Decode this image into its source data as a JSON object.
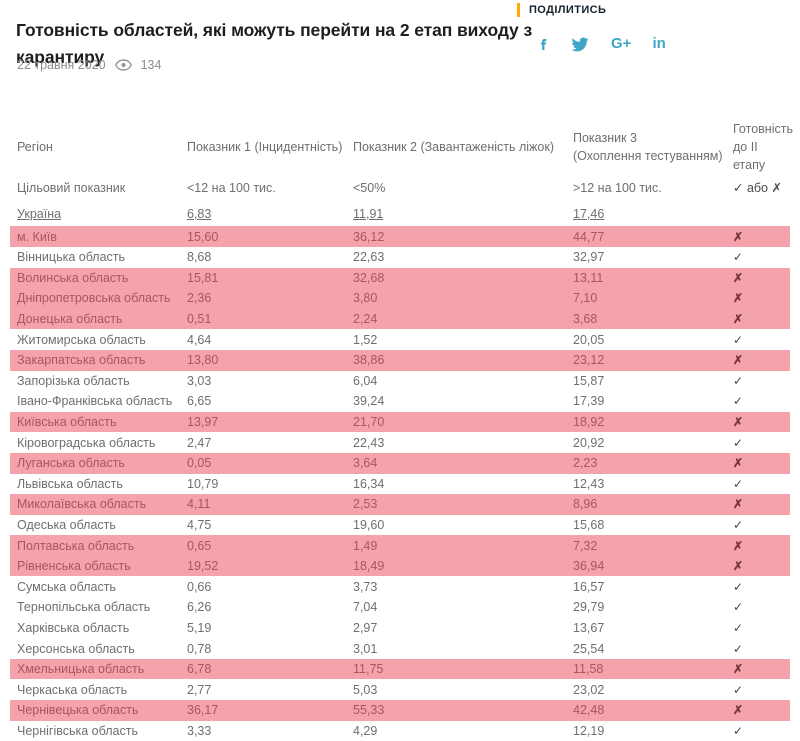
{
  "article": {
    "title": "Готовність областей, які можуть перейти на 2 етап виходу з карантиру",
    "date": "22 травня 2020",
    "views": "134"
  },
  "share": {
    "label": "ПОДІЛИТИСЬ",
    "icons": [
      "facebook-icon",
      "twitter-icon",
      "google-plus-icon",
      "linkedin-icon"
    ],
    "google_plus_text": "G+",
    "linkedin_text": "in"
  },
  "table": {
    "columns": [
      "Регіон",
      "Показник 1 (Інцидентність)",
      "Показник 2 (Завантаженість ліжок)",
      "Показник 3\n(Охоплення тестуванням)",
      "Готовність\nдо II етапу"
    ],
    "target": {
      "label": "Цільовий показник",
      "v1": "<12 на 100 тис.",
      "v2": "<50%",
      "v3": ">12 на 100 тис.",
      "v4": "✓ або ✗"
    },
    "ukraine": {
      "label": "Україна",
      "v1": "6,83",
      "v2": "11,91",
      "v3": "17,46"
    },
    "check_glyph": "✓",
    "cross_glyph": "✗",
    "rows": [
      {
        "region": "м. Київ",
        "v1": "15,60",
        "v2": "36,12",
        "v3": "44,77",
        "ready": false
      },
      {
        "region": "Вінницька область",
        "v1": "8,68",
        "v2": "22,63",
        "v3": "32,97",
        "ready": true
      },
      {
        "region": "Волинська область",
        "v1": "15,81",
        "v2": "32,68",
        "v3": "13,11",
        "ready": false
      },
      {
        "region": "Дніпропетровська область",
        "v1": "2,36",
        "v2": "3,80",
        "v3": "7,10",
        "ready": false
      },
      {
        "region": "Донецька область",
        "v1": "0,51",
        "v2": "2,24",
        "v3": "3,68",
        "ready": false
      },
      {
        "region": "Житомирська область",
        "v1": "4,64",
        "v2": "1,52",
        "v3": "20,05",
        "ready": true
      },
      {
        "region": "Закарпатська область",
        "v1": "13,80",
        "v2": "38,86",
        "v3": "23,12",
        "ready": false
      },
      {
        "region": "Запорізька область",
        "v1": "3,03",
        "v2": "6,04",
        "v3": "15,87",
        "ready": true
      },
      {
        "region": "Івано-Франківська область",
        "v1": "6,65",
        "v2": "39,24",
        "v3": "17,39",
        "ready": true
      },
      {
        "region": "Київська область",
        "v1": "13,97",
        "v2": "21,70",
        "v3": "18,92",
        "ready": false
      },
      {
        "region": "Кіровоградська область",
        "v1": "2,47",
        "v2": "22,43",
        "v3": "20,92",
        "ready": true
      },
      {
        "region": "Луганська область",
        "v1": "0,05",
        "v2": "3,64",
        "v3": "2,23",
        "ready": false
      },
      {
        "region": "Львівська область",
        "v1": "10,79",
        "v2": "16,34",
        "v3": "12,43",
        "ready": true
      },
      {
        "region": "Миколаївська область",
        "v1": "4,11",
        "v2": "2,53",
        "v3": "8,96",
        "ready": false
      },
      {
        "region": "Одеська область",
        "v1": "4,75",
        "v2": "19,60",
        "v3": "15,68",
        "ready": true
      },
      {
        "region": "Полтавська область",
        "v1": "0,65",
        "v2": "1,49",
        "v3": "7,32",
        "ready": false
      },
      {
        "region": "Рівненська область",
        "v1": "19,52",
        "v2": "18,49",
        "v3": "36,94",
        "ready": false
      },
      {
        "region": "Сумська область",
        "v1": "0,66",
        "v2": "3,73",
        "v3": "16,57",
        "ready": true
      },
      {
        "region": "Тернопільська область",
        "v1": "6,26",
        "v2": "7,04",
        "v3": "29,79",
        "ready": true
      },
      {
        "region": "Харківська область",
        "v1": "5,19",
        "v2": "2,97",
        "v3": "13,67",
        "ready": true
      },
      {
        "region": "Херсонська область",
        "v1": "0,78",
        "v2": "3,01",
        "v3": "25,54",
        "ready": true
      },
      {
        "region": "Хмельницька область",
        "v1": "6,78",
        "v2": "11,75",
        "v3": "11,58",
        "ready": false
      },
      {
        "region": "Черкаська область",
        "v1": "2,77",
        "v2": "5,03",
        "v3": "23,02",
        "ready": true
      },
      {
        "region": "Чернівецька область",
        "v1": "36,17",
        "v2": "55,33",
        "v3": "42,48",
        "ready": false
      },
      {
        "region": "Чернігівська область",
        "v1": "3,33",
        "v2": "4,29",
        "v3": "12,19",
        "ready": true
      }
    ]
  },
  "colors": {
    "accent_yellow": "#ffab00",
    "social_blue": "#3fa6c8",
    "highlight_pink_bg": "#f4a2ab",
    "highlight_text": "#ab5561",
    "cross_red": "#7b353e",
    "check_dark": "#3d4a58",
    "title_text": "#1e1e1e",
    "body_text": "#6f6f6f",
    "meta_text": "#8d8d8d"
  }
}
